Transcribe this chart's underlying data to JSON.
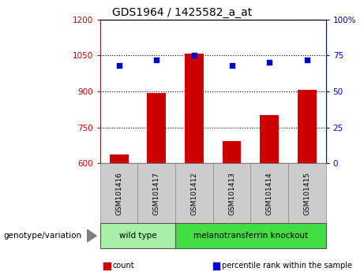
{
  "title": "GDS1964 / 1425582_a_at",
  "samples": [
    "GSM101416",
    "GSM101417",
    "GSM101412",
    "GSM101413",
    "GSM101414",
    "GSM101415"
  ],
  "counts": [
    635,
    893,
    1057,
    693,
    800,
    905
  ],
  "percentiles": [
    68,
    72,
    75,
    68,
    70,
    72
  ],
  "ylim_left": [
    600,
    1200
  ],
  "ylim_right": [
    0,
    100
  ],
  "yticks_left": [
    600,
    750,
    900,
    1050,
    1200
  ],
  "yticks_right": [
    0,
    25,
    50,
    75,
    100
  ],
  "ytick_labels_right": [
    "0",
    "25",
    "50",
    "75",
    "100%"
  ],
  "bar_color": "#cc0000",
  "dot_color": "#0000cc",
  "left_axis_color": "#cc0000",
  "right_axis_color": "#0000cc",
  "groups": [
    {
      "label": "wild type",
      "indices": [
        0,
        1
      ],
      "color": "#a8f0a8"
    },
    {
      "label": "melanotransferrin knockout",
      "indices": [
        2,
        3,
        4,
        5
      ],
      "color": "#44dd44"
    }
  ],
  "group_label": "genotype/variation",
  "legend_items": [
    {
      "color": "#cc0000",
      "label": "count"
    },
    {
      "color": "#0000cc",
      "label": "percentile rank within the sample"
    }
  ],
  "bar_width": 0.5,
  "cell_bg_color": "#cccccc"
}
